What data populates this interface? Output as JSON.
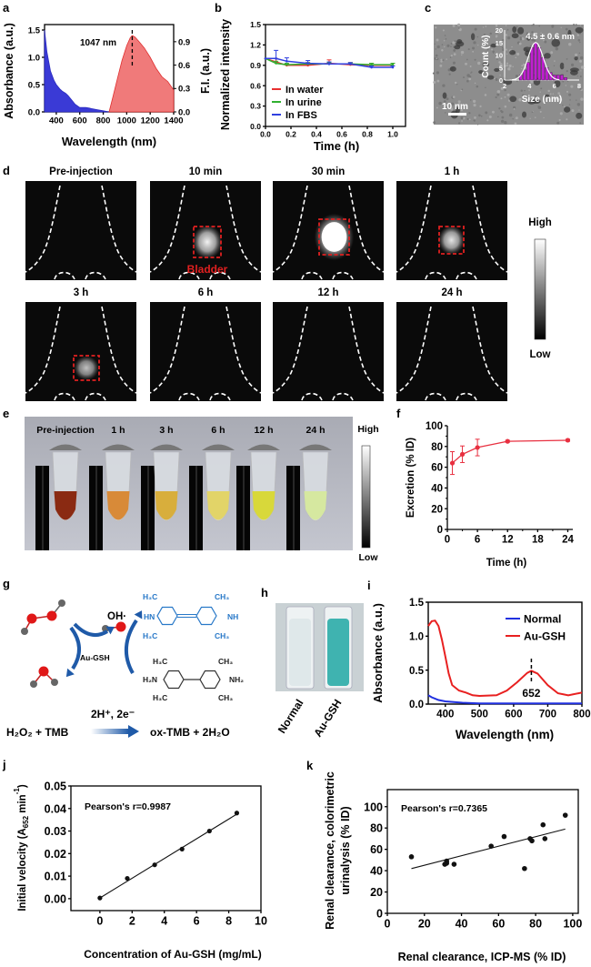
{
  "panel_letters": {
    "a": "a",
    "b": "b",
    "c": "c",
    "d": "d",
    "e": "e",
    "f": "f",
    "g": "g",
    "h": "h",
    "i": "i",
    "j": "j",
    "k": "k"
  },
  "panel_d": {
    "panels": [
      {
        "label": "Pre-injection",
        "signal": 0,
        "roi": false
      },
      {
        "label": "10 min",
        "signal": 0.6,
        "roi": true
      },
      {
        "label": "30 min",
        "signal": 1.0,
        "roi": true
      },
      {
        "label": "1 h",
        "signal": 0.55,
        "roi": true
      },
      {
        "label": "3 h",
        "signal": 0.4,
        "roi": true
      },
      {
        "label": "6 h",
        "signal": 0,
        "roi": false
      },
      {
        "label": "12 h",
        "signal": 0,
        "roi": false
      },
      {
        "label": "24 h",
        "signal": 0,
        "roi": false
      }
    ],
    "roi_label": "Bladder",
    "colorbar_high": "High",
    "colorbar_low": "Low",
    "roi_color": "#e02020"
  },
  "panel_e": {
    "tubes": [
      {
        "label": "Pre-injection",
        "color": "#8a2a12"
      },
      {
        "label": "1 h",
        "color": "#d88a38"
      },
      {
        "label": "3 h",
        "color": "#d8ae3c"
      },
      {
        "label": "6 h",
        "color": "#e2d468"
      },
      {
        "label": "12 h",
        "color": "#d8d83a"
      },
      {
        "label": "24 h",
        "color": "#d6e8a0"
      }
    ],
    "colorbar_high": "High",
    "colorbar_low": "Low"
  },
  "panel_g": {
    "oh_radical": "OH·",
    "catalyst": "Au-GSH",
    "ox_tmb": {
      "tl": "H₃C",
      "tr": "CH₃",
      "l": "HN",
      "r": "NH",
      "bl": "H₃C",
      "br": "CH₃"
    },
    "tmb": {
      "tl": "H₃C",
      "tr": "CH₃",
      "l": "H₂N",
      "r": "NH₂",
      "bl": "H₃C",
      "br": "CH₃"
    },
    "reaction_conditions": "2H⁺, 2e⁻",
    "reactants": "H₂O₂ + TMB",
    "products": "ox-TMB + 2H₂O"
  },
  "panel_h": {
    "tubes": [
      {
        "label": "Normal",
        "color": "#dfe8ea"
      },
      {
        "label": "Au-GSH",
        "color": "#3fb3b0"
      }
    ]
  },
  "chart_data": [
    {
      "panel": "a",
      "type": "area",
      "title": "",
      "xlabel": "Wavelength (nm)",
      "ylabel": "Absorbance (a.u.)",
      "y2label": "F.I. (a.u.)",
      "xlim": [
        300,
        1400
      ],
      "ylim": [
        0,
        1.6
      ],
      "y2lim": [
        0,
        1.12
      ],
      "xticks": [
        "400",
        "600",
        "800",
        "1000",
        "1200",
        "1400"
      ],
      "yticks": [
        "0.0",
        "0.5",
        "1.0",
        "1.5"
      ],
      "y2ticks": [
        "0.0",
        "0.3",
        "0.6",
        "0.9"
      ],
      "annotation": "1047 nm",
      "peak_x": 1047,
      "series": [
        {
          "name": "Absorbance",
          "axis": "left",
          "color": "#3a3ad6",
          "x": [
            300,
            320,
            350,
            380,
            400,
            430,
            450,
            480,
            500,
            530,
            560,
            600,
            650,
            680,
            700,
            750,
            800,
            850
          ],
          "y": [
            1.5,
            1.1,
            0.75,
            0.58,
            0.5,
            0.42,
            0.38,
            0.34,
            0.3,
            0.22,
            0.14,
            0.08,
            0.08,
            0.07,
            0.06,
            0.04,
            0.02,
            0.0
          ]
        },
        {
          "name": "F.I.",
          "axis": "right",
          "color": "#f07a7a",
          "x": [
            850,
            880,
            920,
            960,
            1000,
            1030,
            1047,
            1070,
            1100,
            1150,
            1200,
            1250,
            1300,
            1350,
            1400
          ],
          "y": [
            0.0,
            0.18,
            0.42,
            0.66,
            0.85,
            0.95,
            0.98,
            0.96,
            0.91,
            0.82,
            0.7,
            0.56,
            0.45,
            0.39,
            0.28
          ]
        }
      ]
    },
    {
      "panel": "b",
      "type": "line",
      "title": "",
      "xlabel": "Time (h)",
      "ylabel": "Normalized intensity",
      "xlim": [
        0,
        1.1
      ],
      "ylim": [
        0,
        1.5
      ],
      "xticks": [
        "0.0",
        "0.2",
        "0.4",
        "0.6",
        "0.8",
        "1.0"
      ],
      "yticks": [
        "0.0",
        "0.3",
        "0.6",
        "0.9",
        "1.2",
        "1.5"
      ],
      "legend": "bottom-left",
      "x": [
        0,
        0.083,
        0.167,
        0.333,
        0.5,
        0.667,
        0.833,
        1.0
      ],
      "series": [
        {
          "name": "In water",
          "color": "#e83030",
          "y": [
            1.0,
            0.95,
            0.9,
            0.9,
            0.93,
            0.91,
            0.9,
            0.9
          ],
          "err": [
            0,
            0.05,
            0.02,
            0.04,
            0.05,
            0.03,
            0.03,
            0.03
          ]
        },
        {
          "name": "In urine",
          "color": "#30b030",
          "y": [
            1.0,
            0.93,
            0.91,
            0.92,
            0.92,
            0.92,
            0.91,
            0.91
          ],
          "err": [
            0,
            0.03,
            0.02,
            0.02,
            0.02,
            0.02,
            0.02,
            0.02
          ]
        },
        {
          "name": "In FBS",
          "color": "#3040e0",
          "y": [
            1.0,
            1.0,
            0.96,
            0.93,
            0.92,
            0.92,
            0.87,
            0.87
          ],
          "err": [
            0,
            0.12,
            0.05,
            0.04,
            0.03,
            0.02,
            0.02,
            0.02
          ]
        }
      ]
    },
    {
      "panel": "c",
      "type": "bar",
      "title": "4.5 ± 0.6 nm",
      "xlabel": "Size (nm)",
      "ylabel": "Count (%)",
      "scale_bar": "10 nm",
      "xlim": [
        2,
        8
      ],
      "ylim": [
        0,
        20
      ],
      "xticks": [
        "2",
        "4",
        "6",
        "8"
      ],
      "yticks": [
        "0",
        "5",
        "10",
        "15",
        "20"
      ],
      "x": [
        3.3,
        3.6,
        3.9,
        4.2,
        4.5,
        4.8,
        5.1,
        5.4,
        5.7,
        6.0,
        6.3,
        6.6,
        6.9
      ],
      "values": [
        2,
        4,
        7,
        13,
        15,
        13,
        9,
        5,
        3,
        2,
        2,
        2,
        1
      ],
      "fit": {
        "type": "gaussian",
        "mean": 4.5,
        "sd": 0.6,
        "peak": 15
      }
    },
    {
      "panel": "f",
      "type": "line",
      "title": "",
      "xlabel": "Time (h)",
      "ylabel": "Excretion (% ID)",
      "xlim": [
        0,
        25
      ],
      "ylim": [
        0,
        100
      ],
      "xticks": [
        "0",
        "6",
        "12",
        "18",
        "24"
      ],
      "yticks": [
        "0",
        "20",
        "40",
        "60",
        "80",
        "100"
      ],
      "series": [
        {
          "name": "Excretion",
          "color": "#e83040",
          "x": [
            1,
            3,
            6,
            12,
            24
          ],
          "y": [
            64,
            72.5,
            79,
            85,
            86
          ],
          "err": [
            11,
            8,
            8,
            1,
            1
          ]
        }
      ]
    },
    {
      "panel": "i",
      "type": "line",
      "title": "",
      "xlabel": "Wavelength (nm)",
      "ylabel": "Absorbance (a.u.)",
      "xlim": [
        350,
        800
      ],
      "ylim": [
        0,
        1.5
      ],
      "xticks": [
        "400",
        "500",
        "600",
        "700",
        "800"
      ],
      "yticks": [
        "0.0",
        "0.5",
        "1.0",
        "1.5"
      ],
      "legend": "top-right",
      "annotation": "652",
      "peak_x": 652,
      "series": [
        {
          "name": "Normal",
          "color": "#2030e0",
          "x": [
            350,
            360,
            380,
            400,
            450,
            500,
            600,
            700,
            800
          ],
          "y": [
            0.13,
            0.1,
            0.06,
            0.04,
            0.02,
            0.01,
            0.01,
            0.01,
            0.01
          ]
        },
        {
          "name": "Au-GSH",
          "color": "#e82020",
          "x": [
            350,
            360,
            370,
            380,
            390,
            400,
            410,
            420,
            440,
            460,
            480,
            500,
            550,
            580,
            610,
            640,
            652,
            670,
            700,
            730,
            760,
            790,
            800
          ],
          "y": [
            1.15,
            1.22,
            1.23,
            1.15,
            0.95,
            0.7,
            0.45,
            0.28,
            0.2,
            0.17,
            0.13,
            0.12,
            0.13,
            0.2,
            0.32,
            0.46,
            0.49,
            0.45,
            0.28,
            0.16,
            0.13,
            0.16,
            0.17
          ]
        }
      ]
    },
    {
      "panel": "j",
      "type": "scatter",
      "title": "",
      "xlabel": "Concentration of Au-GSH (mg/mL)",
      "ylabel": "Initial velocity (A652 min-1)",
      "ylabel_main": "Initial velocity (A",
      "ylabel_sub": "652",
      "ylabel_end": " min",
      "ylabel_sup": "-1",
      "ylabel_close": ")",
      "annotation": "Pearson's r=0.9987",
      "xlim": [
        -1.8,
        10
      ],
      "ylim": [
        -0.0053,
        0.05
      ],
      "xticks": [
        "0",
        "2",
        "4",
        "6",
        "8",
        "10"
      ],
      "yticks": [
        "0.00",
        "0.01",
        "0.02",
        "0.03",
        "0.04",
        "0.05"
      ],
      "x": [
        0,
        1.7,
        3.4,
        5.1,
        6.8,
        8.5
      ],
      "y": [
        0.0003,
        0.009,
        0.015,
        0.022,
        0.03,
        0.038
      ],
      "fit": [
        [
          0,
          0.0003
        ],
        [
          8.5,
          0.0375
        ]
      ]
    },
    {
      "panel": "k",
      "type": "scatter",
      "title": "",
      "xlabel": "Renal clearance, ICP-MS (% ID)",
      "ylabel": "Renal clearance, colorimetric urinalysis (% ID)",
      "ylabel_line1": "Renal clearance, colorimetric",
      "ylabel_line2": "urinalysis (% ID)",
      "annotation": "Pearson's r=0.7365",
      "xlim": [
        0,
        103
      ],
      "ylim": [
        0,
        116
      ],
      "xticks": [
        "0",
        "20",
        "40",
        "60",
        "80",
        "100"
      ],
      "yticks": [
        "0",
        "20",
        "40",
        "60",
        "80",
        "100"
      ],
      "x": [
        13,
        31,
        32,
        32,
        36,
        56,
        63,
        74,
        77,
        78,
        84,
        85,
        96
      ],
      "y": [
        53,
        46,
        49,
        47,
        46,
        63,
        72,
        42,
        70,
        68,
        83,
        70,
        92
      ],
      "fit": [
        [
          13,
          42
        ],
        [
          96,
          79
        ]
      ]
    }
  ]
}
